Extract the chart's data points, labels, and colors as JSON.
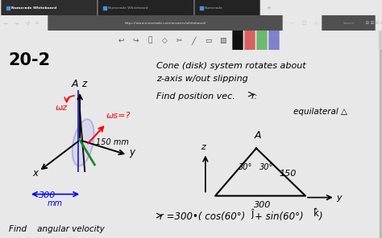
{
  "browser_tab_bg": "#1c1c1c",
  "browser_addr_bg": "#2d2d2d",
  "toolbar_bg": "#f0f0f0",
  "whiteboard_bg": "#ffffff",
  "page_bg": "#e8e8e8",
  "title": "20-2",
  "line1": "Cone (disk) system rotates about",
  "line2": "z-axis w/out slipping",
  "find_line": "Find position vec. r:",
  "equilateral": "equilateral △",
  "equation": "⃗r =300•( cos(60°)ĵ+ sin(60°)k̂)",
  "bottom_partial": "Find    angular velocity",
  "label_150mm": "150 mm",
  "label_300mm": "300",
  "label_mm": "mm",
  "label_y": "y",
  "label_z": "z",
  "label_x": "x",
  "label_A_diagram": "A",
  "label_A_tri": "A",
  "tri_150": "150",
  "tri_300": "300",
  "ang1": "30°",
  "ang2": "30°",
  "omega_z": "ωz",
  "omega_s": "ωs=?",
  "tab1": "Numerade Whiteboard",
  "tab2": "Numerade Whiteboard",
  "tab3": "Numerade",
  "addr": "https://www.numerade.com/answers/whiteboard/",
  "search": "Search"
}
